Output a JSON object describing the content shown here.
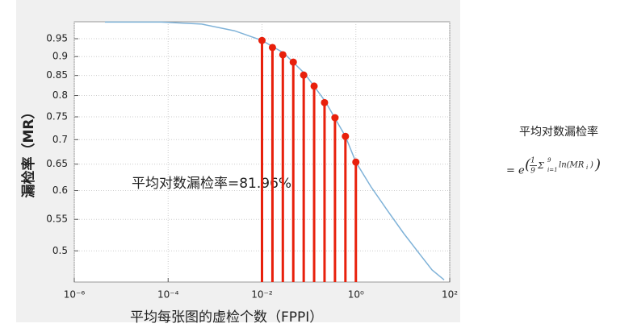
{
  "chart_data": {
    "type": "line",
    "xlabel": "平均每张图的虚检个数（FPPI）",
    "ylabel": "漏检率（MR）",
    "annotation": "平均对数漏检率=81.96%",
    "xlog": true,
    "ylog": true,
    "grid": true,
    "xlim": [
      1e-06,
      100
    ],
    "xticks": [
      {
        "value": 1e-06,
        "label": "10⁻⁶"
      },
      {
        "value": 0.0001,
        "label": "10⁻⁴"
      },
      {
        "value": 0.01,
        "label": "10⁻²"
      },
      {
        "value": 1,
        "label": "10⁰"
      },
      {
        "value": 100,
        "label": "10²"
      }
    ],
    "ylim": [
      0.455,
      1
    ],
    "yticks": [
      0.5,
      0.55,
      0.6,
      0.65,
      0.7,
      0.75,
      0.8,
      0.85,
      0.9,
      0.95
    ],
    "series": [
      {
        "type": "line",
        "color": "#7fb2d8",
        "x": [
          4.5e-06,
          7.2e-05,
          0.00052,
          0.0026,
          0.01,
          0.029,
          0.081,
          0.22,
          0.6,
          1.0,
          2.1,
          4.8,
          10.5,
          23,
          42,
          76
        ],
        "values": [
          0.999,
          0.999,
          0.993,
          0.973,
          0.945,
          0.91,
          0.855,
          0.787,
          0.707,
          0.654,
          0.607,
          0.564,
          0.527,
          0.495,
          0.472,
          0.458
        ]
      },
      {
        "type": "stem",
        "color": "#e8200c",
        "x": [
          0.01,
          0.0167,
          0.0278,
          0.0464,
          0.0774,
          0.129,
          0.215,
          0.359,
          0.599,
          1.0
        ],
        "values": [
          0.945,
          0.925,
          0.905,
          0.885,
          0.851,
          0.823,
          0.783,
          0.748,
          0.707,
          0.654
        ]
      }
    ]
  },
  "side_note": {
    "title": "平均对数漏检率",
    "formula": [
      "= e",
      "(",
      "1",
      "9",
      "Σ",
      "9",
      "i=1",
      "ln(MR",
      "i",
      ")",
      ")"
    ]
  }
}
